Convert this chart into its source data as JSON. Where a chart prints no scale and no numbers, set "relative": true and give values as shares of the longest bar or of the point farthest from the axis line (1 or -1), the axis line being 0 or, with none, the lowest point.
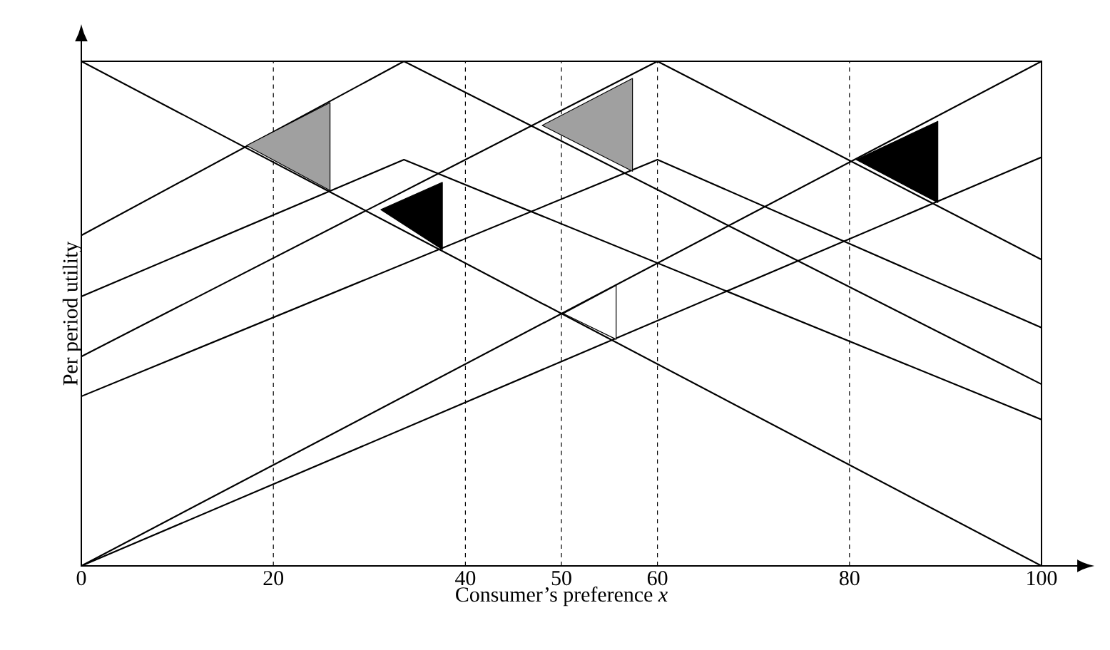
{
  "chart_data": {
    "type": "line",
    "relative": true,
    "xlabel": "Consumer’s preference *x*",
    "ylabel": "Per period utility",
    "xlim": [
      0,
      100
    ],
    "xticks": [
      0,
      20,
      40,
      50,
      60,
      80,
      100
    ],
    "grid": "x",
    "color": "#000000",
    "marker": "none",
    "line_style": "solid",
    "series": [
      {
        "x": [
          0,
          100
        ],
        "values": [
          1,
          0
        ]
      },
      {
        "x": [
          0,
          100
        ],
        "values": [
          0,
          1
        ]
      },
      {
        "x": [
          0,
          33.6,
          100
        ],
        "values": [
          0.655,
          1,
          0.36
        ]
      },
      {
        "x": [
          0,
          33.6,
          100
        ],
        "values": [
          0.534,
          0.805,
          0.29
        ]
      },
      {
        "x": [
          0,
          60,
          100
        ],
        "values": [
          0.415,
          1,
          0.607
        ]
      },
      {
        "x": [
          0,
          60,
          100
        ],
        "values": [
          0.336,
          0.805,
          0.472
        ]
      },
      {
        "x": [
          0,
          100
        ],
        "values": [
          0,
          0.81
        ]
      },
      {
        "type": "area",
        "color": "#a0a0a0",
        "x": [
          17.2,
          25.9,
          25.9,
          17.2
        ],
        "values": [
          0.833,
          0.918,
          0.744,
          0.833
        ]
      },
      {
        "type": "area",
        "color": "#000000",
        "x": [
          31.2,
          37.6,
          37.6,
          31.2
        ],
        "values": [
          0.706,
          0.76,
          0.627,
          0.706
        ]
      },
      {
        "type": "area",
        "color": "#a0a0a0",
        "x": [
          48,
          57.4,
          57.4,
          48
        ],
        "values": [
          0.873,
          0.966,
          0.782,
          0.873
        ]
      },
      {
        "type": "area",
        "color": "#000000",
        "x": [
          80.7,
          89.2,
          89.2,
          80.7
        ],
        "values": [
          0.805,
          0.881,
          0.72,
          0.805
        ]
      },
      {
        "type": "area",
        "color": "#ffffff",
        "x": [
          50.2,
          55.7,
          55.7,
          50.2
        ],
        "values": [
          0.5,
          0.556,
          0.449,
          0.5
        ]
      }
    ]
  }
}
